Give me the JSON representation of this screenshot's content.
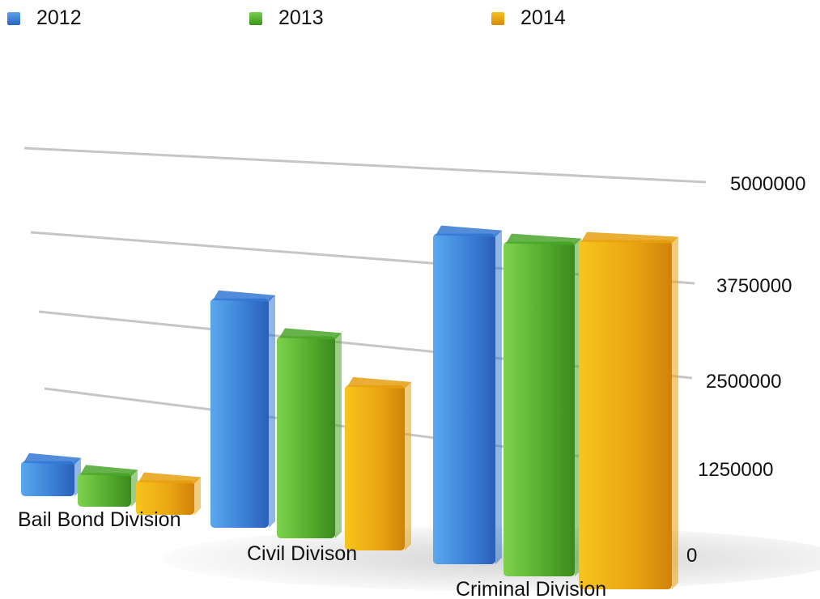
{
  "chart_data": {
    "type": "bar",
    "categories": [
      "Bail Bond Division",
      "Civil Divison",
      "Criminal Division"
    ],
    "series": [
      {
        "name": "2012",
        "color": "#3478d4",
        "values": [
          450000,
          2950000,
          4150000
        ]
      },
      {
        "name": "2013",
        "color": "#4aa62a",
        "values": [
          450000,
          2600000,
          4150000
        ]
      },
      {
        "name": "2014",
        "color": "#e8a010",
        "values": [
          450000,
          2100000,
          4200000
        ]
      }
    ],
    "yticks": [
      "0",
      "1250000",
      "2500000",
      "3750000",
      "5000000"
    ],
    "ylim": [
      0,
      5000000
    ],
    "grid": true,
    "legend_position": "top"
  }
}
